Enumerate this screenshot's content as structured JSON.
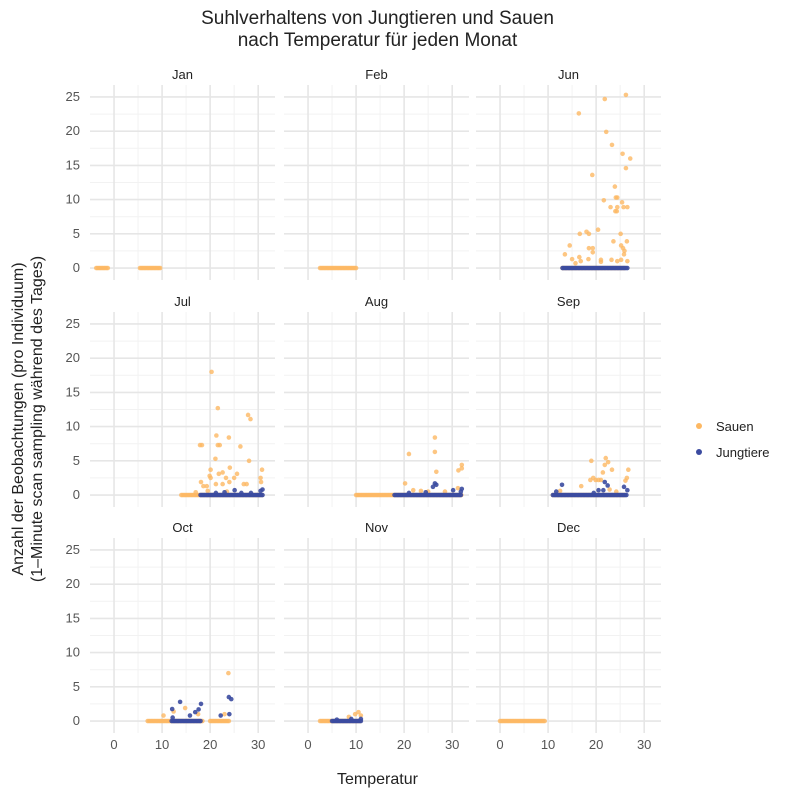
{
  "chart_data": {
    "type": "scatter",
    "title": [
      "Suhlverhaltens von Jungtieren und Sauen",
      "nach Temperatur für jeden Monat"
    ],
    "xlabel": "Temperatur",
    "ylabel": [
      "Anzahl der Beobachtungen (pro Individuum)",
      "(1–Minute scan sampling während des Tages)"
    ],
    "xlim": [
      -5,
      33.5
    ],
    "ylim": [
      -1.75,
      26.75
    ],
    "xticks": [
      0,
      10,
      20,
      30
    ],
    "yticks": [
      0,
      5,
      10,
      15,
      20,
      25
    ],
    "grid": true,
    "legend_position": "right",
    "legend": [
      {
        "name": "Sauen",
        "color": "#FDB863"
      },
      {
        "name": "Jungtiere",
        "color": "#3B4BA0"
      }
    ],
    "facets": [
      {
        "label": "Jan",
        "zeros": {
          "Sauen": [
            [
              -3.7,
              -1.2
            ],
            [
              5.4,
              9.6
            ]
          ],
          "Jungtiere": []
        },
        "points": {
          "Sauen": [],
          "Jungtiere": []
        }
      },
      {
        "label": "Feb",
        "zeros": {
          "Sauen": [
            [
              2.5,
              10
            ]
          ],
          "Jungtiere": []
        },
        "points": {
          "Sauen": [],
          "Jungtiere": []
        }
      },
      {
        "label": "Jun",
        "zeros": {
          "Sauen": [
            [
              13,
              26
            ]
          ],
          "Jungtiere": [
            [
              13,
              26.5
            ]
          ]
        },
        "points": {
          "Sauen": [
            [
              21.8,
              24.7
            ],
            [
              26.2,
              25.3
            ],
            [
              16.4,
              22.6
            ],
            [
              22.1,
              19.9
            ],
            [
              23.3,
              18
            ],
            [
              25.5,
              16.7
            ],
            [
              27.1,
              16
            ],
            [
              26.2,
              14.6
            ],
            [
              19.2,
              13.6
            ],
            [
              23.9,
              11.9
            ],
            [
              24.1,
              10.3
            ],
            [
              24.4,
              10.3
            ],
            [
              21.6,
              9.9
            ],
            [
              25.4,
              9.6
            ],
            [
              23,
              8.9
            ],
            [
              24.4,
              8.9
            ],
            [
              25.7,
              8.9
            ],
            [
              26.5,
              8.9
            ],
            [
              24,
              8.3
            ],
            [
              24.3,
              8.3
            ],
            [
              20.4,
              5.6
            ],
            [
              18,
              5.3
            ],
            [
              18.5,
              5
            ],
            [
              16.6,
              5
            ],
            [
              25.1,
              5
            ],
            [
              23.6,
              3.9
            ],
            [
              26.4,
              3.9
            ],
            [
              14.5,
              3.3
            ],
            [
              25.2,
              3.3
            ],
            [
              25.6,
              2.9
            ],
            [
              25.9,
              2.5
            ],
            [
              18.5,
              2.9
            ],
            [
              19.3,
              2.9
            ],
            [
              19.3,
              2.3
            ],
            [
              13.5,
              2
            ],
            [
              25.8,
              2
            ],
            [
              16.5,
              1.6
            ],
            [
              15,
              1.3
            ],
            [
              16.8,
              1
            ],
            [
              18.4,
              1.3
            ],
            [
              21,
              1.2
            ],
            [
              21,
              0.9
            ],
            [
              23.2,
              1.2
            ],
            [
              25.2,
              1.2
            ],
            [
              15.7,
              0.7
            ],
            [
              24.4,
              1
            ],
            [
              26.5,
              1
            ]
          ],
          "Jungtiere": []
        }
      },
      {
        "label": "Jul",
        "zeros": {
          "Sauen": [
            [
              14,
              31
            ]
          ],
          "Jungtiere": [
            [
              18,
              31
            ]
          ]
        },
        "points": {
          "Sauen": [
            [
              20.3,
              18
            ],
            [
              21.6,
              12.7
            ],
            [
              27.9,
              11.7
            ],
            [
              28.4,
              11.1
            ],
            [
              21.3,
              8.7
            ],
            [
              23.9,
              8.4
            ],
            [
              17.9,
              7.3
            ],
            [
              18.3,
              7.3
            ],
            [
              21.6,
              7.3
            ],
            [
              22,
              7.3
            ],
            [
              26.3,
              7.1
            ],
            [
              21.1,
              5.3
            ],
            [
              28.1,
              5
            ],
            [
              24.1,
              4
            ],
            [
              20.1,
              3.7
            ],
            [
              30.8,
              3.7
            ],
            [
              21.8,
              3.1
            ],
            [
              22.6,
              3.3
            ],
            [
              25.6,
              3.1
            ],
            [
              19.9,
              2.8
            ],
            [
              20.1,
              2.5
            ],
            [
              23.3,
              2.5
            ],
            [
              25,
              2.5
            ],
            [
              18.1,
              1.9
            ],
            [
              18.6,
              1.3
            ],
            [
              19.3,
              1.3
            ],
            [
              21.2,
              1.6
            ],
            [
              22.6,
              1.6
            ],
            [
              24,
              1.9
            ],
            [
              27,
              1.6
            ],
            [
              27.6,
              1.6
            ],
            [
              30.5,
              2.5
            ],
            [
              30.6,
              1.9
            ],
            [
              17,
              0.4
            ],
            [
              19.5,
              0.6
            ],
            [
              23.5,
              0.5
            ]
          ],
          "Jungtiere": [
            [
              25.1,
              0.7
            ],
            [
              30.5,
              0.6
            ],
            [
              30.9,
              0.8
            ],
            [
              21.2,
              0.3
            ],
            [
              23,
              0.4
            ],
            [
              26.5,
              0.3
            ],
            [
              28.5,
              0.3
            ]
          ]
        }
      },
      {
        "label": "Aug",
        "zeros": {
          "Sauen": [
            [
              10,
              32
            ]
          ],
          "Jungtiere": [
            [
              18,
              32
            ]
          ]
        },
        "points": {
          "Sauen": [
            [
              26.4,
              8.4
            ],
            [
              26.4,
              6.3
            ],
            [
              21,
              6
            ],
            [
              26.7,
              3.4
            ],
            [
              32,
              4.4
            ],
            [
              31.3,
              3.6
            ],
            [
              32,
              3.9
            ],
            [
              20.2,
              1.7
            ],
            [
              31.2,
              1
            ],
            [
              21.9,
              0.7
            ],
            [
              23.5,
              0.6
            ],
            [
              25,
              0.5
            ],
            [
              28.5,
              0.5
            ]
          ],
          "Jungtiere": [
            [
              26.4,
              1.7
            ],
            [
              26.7,
              1.5
            ],
            [
              26,
              1.2
            ],
            [
              32,
              0.9
            ],
            [
              31.8,
              0.5
            ],
            [
              30.2,
              0.7
            ],
            [
              21,
              0.3
            ],
            [
              24.5,
              0.4
            ]
          ]
        }
      },
      {
        "label": "Sep",
        "zeros": {
          "Sauen": [
            [
              11,
              26
            ]
          ],
          "Jungtiere": [
            [
              11,
              26.5
            ]
          ]
        },
        "points": {
          "Sauen": [
            [
              19,
              5
            ],
            [
              22,
              5.4
            ],
            [
              22.5,
              4.8
            ],
            [
              21.8,
              4.4
            ],
            [
              23.3,
              3.7
            ],
            [
              21.4,
              3.3
            ],
            [
              26.7,
              3.7
            ],
            [
              26.4,
              2.5
            ],
            [
              26.1,
              2.1
            ],
            [
              19.4,
              2.5
            ],
            [
              19.9,
              2.2
            ],
            [
              20.5,
              2.2
            ],
            [
              21,
              2.2
            ],
            [
              18.8,
              2.2
            ],
            [
              16.9,
              1.3
            ],
            [
              12.5,
              0.6
            ],
            [
              22.8,
              0.8
            ],
            [
              24.2,
              0.5
            ]
          ],
          "Jungtiere": [
            [
              12.9,
              1.5
            ],
            [
              21.8,
              1.9
            ],
            [
              22.4,
              1.4
            ],
            [
              20.5,
              0.7
            ],
            [
              21.5,
              0.7
            ],
            [
              25.8,
              1.2
            ],
            [
              26.5,
              0.7
            ],
            [
              11.7,
              0.5
            ],
            [
              19.5,
              0.3
            ]
          ]
        }
      },
      {
        "label": "Oct",
        "zeros": {
          "Sauen": [
            [
              7,
              18.5
            ],
            [
              20,
              24
            ]
          ],
          "Jungtiere": [
            [
              12,
              18
            ]
          ]
        },
        "points": {
          "Sauen": [
            [
              23.8,
              7
            ],
            [
              14.8,
              1.9
            ],
            [
              12.4,
              1.4
            ],
            [
              10.3,
              0.8
            ],
            [
              23,
              1
            ],
            [
              17.5,
              1
            ]
          ],
          "Jungtiere": [
            [
              13.75,
              2.8
            ],
            [
              18.1,
              2.5
            ],
            [
              12.1,
              1.75
            ],
            [
              17.6,
              1.7
            ],
            [
              16.9,
              1.3
            ],
            [
              15.8,
              0.8
            ],
            [
              12.2,
              0.5
            ],
            [
              23.9,
              3.5
            ],
            [
              24.4,
              3.2
            ],
            [
              22.2,
              0.8
            ],
            [
              24,
              1
            ]
          ]
        }
      },
      {
        "label": "Nov",
        "zeros": {
          "Sauen": [
            [
              2.5,
              11
            ]
          ],
          "Jungtiere": [
            [
              5,
              11
            ]
          ]
        },
        "points": {
          "Sauen": [
            [
              10.5,
              1.3
            ],
            [
              9.8,
              1
            ],
            [
              11,
              0.8
            ],
            [
              8.5,
              0.6
            ]
          ],
          "Jungtiere": [
            [
              11,
              0.3
            ],
            [
              9,
              0.3
            ],
            [
              6,
              0.2
            ]
          ]
        }
      },
      {
        "label": "Dec",
        "zeros": {
          "Sauen": [
            [
              0,
              9.5
            ]
          ],
          "Jungtiere": []
        },
        "points": {
          "Sauen": [],
          "Jungtiere": []
        }
      }
    ]
  }
}
